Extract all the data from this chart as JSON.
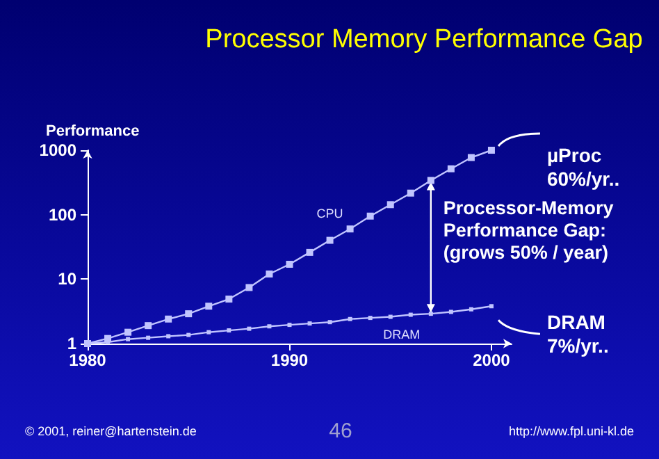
{
  "chart_data": {
    "type": "line",
    "title": "Processor Memory Performance Gap",
    "ylabel": "Performance",
    "x": [
      1980,
      1981,
      1982,
      1983,
      1984,
      1985,
      1986,
      1987,
      1988,
      1989,
      1990,
      1991,
      1992,
      1993,
      1994,
      1995,
      1996,
      1997,
      1998,
      1999,
      2000
    ],
    "series": [
      {
        "name": "CPU",
        "color": "#c0c4ff",
        "values": [
          1,
          1.2,
          1.5,
          1.9,
          2.4,
          2.9,
          3.8,
          4.9,
          7.4,
          12,
          17,
          26,
          40,
          60,
          95,
          143,
          216,
          340,
          515,
          770,
          1000
        ]
      },
      {
        "name": "DRAM",
        "color": "#c0c4ff",
        "values": [
          1,
          1.05,
          1.17,
          1.23,
          1.3,
          1.36,
          1.5,
          1.6,
          1.7,
          1.85,
          1.95,
          2.05,
          2.15,
          2.4,
          2.5,
          2.6,
          2.8,
          2.9,
          3.1,
          3.4,
          3.8
        ]
      }
    ],
    "log": "y",
    "xlim": [
      1980,
      2001
    ],
    "ylim": [
      1,
      1000
    ],
    "xticks": [
      1980,
      1990,
      2000
    ],
    "yticks": [
      1,
      10,
      100,
      1000
    ],
    "marker": "square",
    "line_style": "solid",
    "annotations": [
      "µProc 60%/yr..",
      "Processor-Memory Performance Gap: (grows 50% / year)",
      "DRAM 7%/yr..",
      "© 2001, reiner@hartenstein.de",
      "46",
      "http://www.fpl.uni-kl.de"
    ]
  }
}
